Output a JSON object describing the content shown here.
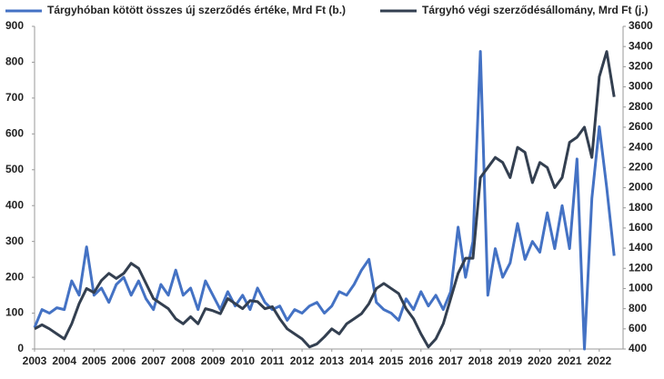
{
  "chart_data": {
    "type": "line",
    "x": [
      2003,
      2003.25,
      2003.5,
      2003.75,
      2004,
      2004.25,
      2004.5,
      2004.75,
      2005,
      2005.25,
      2005.5,
      2005.75,
      2006,
      2006.25,
      2006.5,
      2006.75,
      2007,
      2007.25,
      2007.5,
      2007.75,
      2008,
      2008.25,
      2008.5,
      2008.75,
      2009,
      2009.25,
      2009.5,
      2009.75,
      2010,
      2010.25,
      2010.5,
      2010.75,
      2011,
      2011.25,
      2011.5,
      2011.75,
      2012,
      2012.25,
      2012.5,
      2012.75,
      2013,
      2013.25,
      2013.5,
      2013.75,
      2014,
      2014.25,
      2014.5,
      2014.75,
      2015,
      2015.25,
      2015.5,
      2015.75,
      2016,
      2016.25,
      2016.5,
      2016.75,
      2017,
      2017.25,
      2017.5,
      2017.75,
      2018,
      2018.25,
      2018.5,
      2018.75,
      2019,
      2019.25,
      2019.5,
      2019.75,
      2020,
      2020.25,
      2020.5,
      2020.75,
      2021,
      2021.25,
      2021.5,
      2021.75,
      2022,
      2022.25,
      2022.5
    ],
    "series": [
      {
        "name": "Tárgyhóban kötött összes új szerződés értéke, Mrd Ft (b.)",
        "color": "#4472c4",
        "axis": "y",
        "values": [
          60,
          110,
          100,
          115,
          110,
          190,
          150,
          285,
          150,
          170,
          130,
          180,
          200,
          150,
          190,
          140,
          110,
          180,
          150,
          220,
          150,
          170,
          110,
          190,
          150,
          110,
          160,
          120,
          150,
          110,
          170,
          130,
          110,
          120,
          80,
          110,
          100,
          120,
          130,
          100,
          120,
          160,
          150,
          180,
          220,
          250,
          130,
          110,
          100,
          80,
          140,
          110,
          160,
          120,
          150,
          110,
          160,
          340,
          200,
          300,
          830,
          150,
          280,
          200,
          240,
          350,
          250,
          300,
          270,
          380,
          280,
          400,
          280,
          530,
          0,
          420,
          620,
          450,
          260
        ]
      },
      {
        "name": "Tárgyhó végi szerződésállomány, Mrd Ft (j.)",
        "color": "#333f50",
        "axis": "y2",
        "values": [
          600,
          640,
          600,
          550,
          500,
          650,
          850,
          1000,
          960,
          1080,
          1150,
          1100,
          1150,
          1250,
          1200,
          1050,
          900,
          850,
          800,
          700,
          650,
          720,
          650,
          800,
          780,
          750,
          900,
          850,
          800,
          880,
          870,
          800,
          820,
          700,
          600,
          550,
          500,
          420,
          450,
          520,
          600,
          550,
          650,
          700,
          750,
          850,
          1000,
          1050,
          1000,
          950,
          800,
          700,
          550,
          420,
          500,
          650,
          900,
          1150,
          1300,
          1300,
          2100,
          2200,
          2300,
          2250,
          2100,
          2400,
          2350,
          2050,
          2250,
          2200,
          2000,
          2100,
          2450,
          2500,
          2600,
          2300,
          3100,
          3350,
          2900
        ]
      }
    ],
    "xlim": [
      2003,
      2022.8
    ],
    "xticks": [
      2003,
      2004,
      2005,
      2006,
      2007,
      2008,
      2009,
      2010,
      2011,
      2012,
      2013,
      2014,
      2015,
      2016,
      2017,
      2018,
      2019,
      2020,
      2021,
      2022
    ],
    "ylim": [
      0,
      900
    ],
    "yticks": [
      0,
      100,
      200,
      300,
      400,
      500,
      600,
      700,
      800,
      900
    ],
    "y2lim": [
      400,
      3600
    ],
    "y2ticks": [
      400,
      600,
      800,
      1000,
      1200,
      1400,
      1600,
      1800,
      2000,
      2200,
      2400,
      2600,
      2800,
      3000,
      3200,
      3400,
      3600
    ],
    "legend": "top"
  }
}
